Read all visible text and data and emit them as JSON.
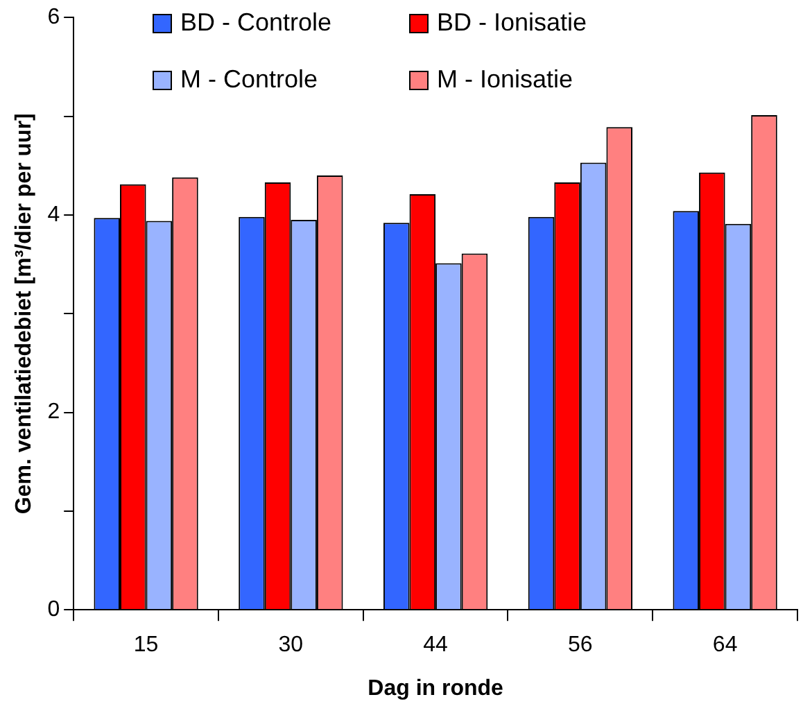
{
  "chart_data": {
    "type": "bar",
    "xlabel": "Dag in ronde",
    "ylabel": "Gem. ventilatiedebiet [m³/dier per uur]",
    "categories": [
      "15",
      "30",
      "44",
      "56",
      "64"
    ],
    "series": [
      {
        "name": "BD - Controle",
        "color": "#3366ff",
        "values": [
          3.97,
          3.98,
          3.92,
          3.98,
          4.04
        ]
      },
      {
        "name": "BD - Ionisatie",
        "color": "#ff0000",
        "values": [
          4.31,
          4.33,
          4.21,
          4.33,
          4.43
        ]
      },
      {
        "name": "M - Controle",
        "color": "#99b3ff",
        "values": [
          3.94,
          3.95,
          3.51,
          4.53,
          3.91
        ]
      },
      {
        "name": "M - Ionisatie",
        "color": "#ff8080",
        "values": [
          4.38,
          4.4,
          3.61,
          4.89,
          5.01
        ]
      }
    ],
    "ylim": [
      0,
      6
    ],
    "yticks": [
      0,
      {
        "value": 1,
        "label": null
      },
      2,
      {
        "value": 3,
        "label": null
      },
      4,
      {
        "value": 5,
        "label": null
      },
      6
    ],
    "grid": false,
    "legend": "top"
  }
}
